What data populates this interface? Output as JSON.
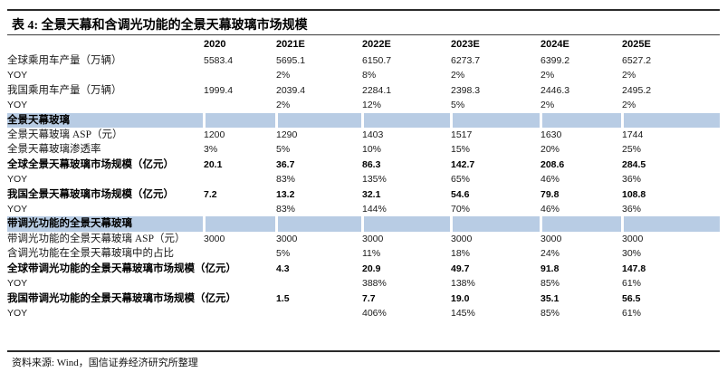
{
  "table": {
    "title": "表 4: 全景天幕和含调光功能的全景天幕玻璃市场规模",
    "columns": [
      "2020",
      "2021E",
      "2022E",
      "2023E",
      "2024E",
      "2025E"
    ],
    "rows": [
      {
        "type": "data",
        "label": "全球乘用车产量（万辆）",
        "values": [
          "5583.4",
          "5695.1",
          "6150.7",
          "6273.7",
          "6399.2",
          "6527.2"
        ],
        "bold": false
      },
      {
        "type": "data",
        "label": "YOY",
        "values": [
          "",
          "2%",
          "8%",
          "2%",
          "2%",
          "2%"
        ],
        "bold": false
      },
      {
        "type": "data",
        "label": "我国乘用车产量（万辆）",
        "values": [
          "1999.4",
          "2039.4",
          "2284.1",
          "2398.3",
          "2446.3",
          "2495.2"
        ],
        "bold": false
      },
      {
        "type": "data",
        "label": "YOY",
        "values": [
          "",
          "2%",
          "12%",
          "5%",
          "2%",
          "2%"
        ],
        "bold": false
      },
      {
        "type": "section",
        "label": "全景天幕玻璃"
      },
      {
        "type": "data",
        "label": "全景天幕玻璃 ASP（元）",
        "values": [
          "1200",
          "1290",
          "1403",
          "1517",
          "1630",
          "1744"
        ],
        "bold": false
      },
      {
        "type": "data",
        "label": "全景天幕玻璃渗透率",
        "values": [
          "3%",
          "5%",
          "10%",
          "15%",
          "20%",
          "25%"
        ],
        "bold": false
      },
      {
        "type": "data",
        "label": "全球全景天幕玻璃市场规模（亿元）",
        "values": [
          "20.1",
          "36.7",
          "86.3",
          "142.7",
          "208.6",
          "284.5"
        ],
        "bold": true
      },
      {
        "type": "data",
        "label": "YOY",
        "values": [
          "",
          "83%",
          "135%",
          "65%",
          "46%",
          "36%"
        ],
        "bold": false
      },
      {
        "type": "data",
        "label": "我国全景天幕玻璃市场规模（亿元）",
        "values": [
          "7.2",
          "13.2",
          "32.1",
          "54.6",
          "79.8",
          "108.8"
        ],
        "bold": true
      },
      {
        "type": "data",
        "label": "YOY",
        "values": [
          "",
          "83%",
          "144%",
          "70%",
          "46%",
          "36%"
        ],
        "bold": false
      },
      {
        "type": "section",
        "label": "带调光功能的全景天幕玻璃"
      },
      {
        "type": "data",
        "label": "带调光功能的全景天幕玻璃 ASP（元）",
        "values": [
          "3000",
          "3000",
          "3000",
          "3000",
          "3000",
          "3000"
        ],
        "bold": false
      },
      {
        "type": "data",
        "label": "含调光功能在全景天幕玻璃中的占比",
        "values": [
          "",
          "5%",
          "11%",
          "18%",
          "24%",
          "30%"
        ],
        "bold": false
      },
      {
        "type": "data",
        "label": "全球带调光功能的全景天幕玻璃市场规模（亿元）",
        "values": [
          "",
          "4.3",
          "20.9",
          "49.7",
          "91.8",
          "147.8"
        ],
        "bold": true
      },
      {
        "type": "data",
        "label": "YOY",
        "values": [
          "",
          "",
          "388%",
          "138%",
          "85%",
          "61%"
        ],
        "bold": false
      },
      {
        "type": "data",
        "label": "我国带调光功能的全景天幕玻璃市场规模（亿元）",
        "values": [
          "",
          "1.5",
          "7.7",
          "19.0",
          "35.1",
          "56.5"
        ],
        "bold": true
      },
      {
        "type": "data",
        "label": "YOY",
        "values": [
          "",
          "",
          "406%",
          "145%",
          "85%",
          "61%"
        ],
        "bold": false
      }
    ],
    "source": "资料来源: Wind，国信证券经济研究所整理"
  },
  "colors": {
    "section_band": "#b8cce4",
    "rule": "#2b2b2b",
    "text": "#1a1a1a"
  }
}
